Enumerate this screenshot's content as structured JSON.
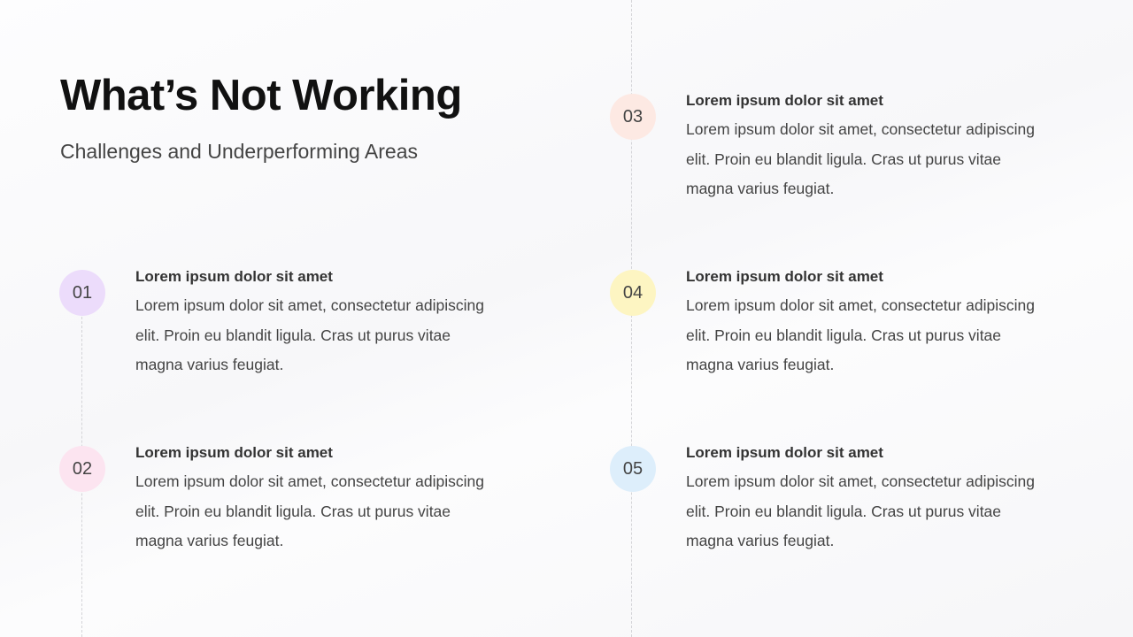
{
  "title": "What’s Not Working",
  "subtitle": "Challenges and Underperforming Areas",
  "items": [
    {
      "num": "01",
      "color": "#ecdcfb",
      "title": "Lorem ipsum dolor sit amet",
      "text": "Lorem ipsum dolor sit amet, consectetur adipiscing elit. Proin eu blandit ligula. Cras ut purus vitae magna varius feugiat."
    },
    {
      "num": "02",
      "color": "#fce4f0",
      "title": "Lorem ipsum dolor sit amet",
      "text": "Lorem ipsum dolor sit amet, consectetur adipiscing elit. Proin eu blandit ligula. Cras ut purus vitae magna varius feugiat."
    },
    {
      "num": "03",
      "color": "#fde9e3",
      "title": "Lorem ipsum dolor sit amet",
      "text": "Lorem ipsum dolor sit amet, consectetur adipiscing elit. Proin eu blandit ligula. Cras ut purus vitae magna varius feugiat."
    },
    {
      "num": "04",
      "color": "#fdf5c2",
      "title": "Lorem ipsum dolor sit amet",
      "text": "Lorem ipsum dolor sit amet, consectetur adipiscing elit. Proin eu blandit ligula. Cras ut purus vitae magna varius feugiat."
    },
    {
      "num": "05",
      "color": "#ddeefb",
      "title": "Lorem ipsum dolor sit amet",
      "text": "Lorem ipsum dolor sit amet, consectetur adipiscing elit. Proin eu blandit ligula. Cras ut purus vitae magna varius feugiat."
    }
  ]
}
